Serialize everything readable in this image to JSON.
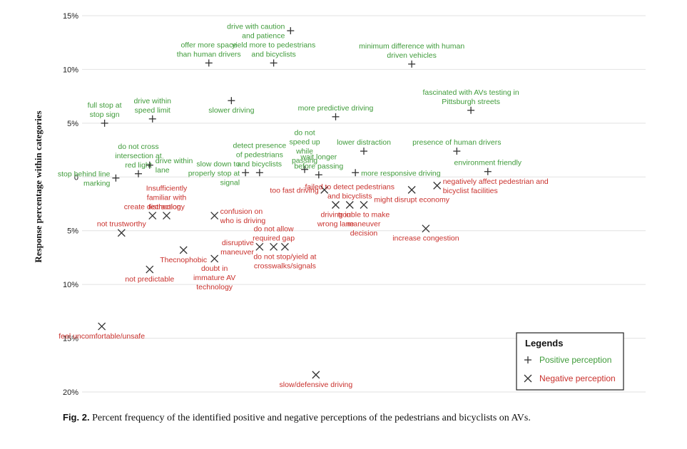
{
  "chart_data": {
    "type": "scatter",
    "ylabel": "Response percentage within categories",
    "yticks": [
      {
        "value": 15,
        "label": "15%"
      },
      {
        "value": 10,
        "label": "10%"
      },
      {
        "value": 5,
        "label": "5%"
      },
      {
        "value": 0,
        "label": "0"
      },
      {
        "value": -5,
        "label": "5%"
      },
      {
        "value": -10,
        "label": "10%"
      },
      {
        "value": -15,
        "label": "15%"
      },
      {
        "value": -20,
        "label": "20%"
      }
    ],
    "ylim": [
      -20,
      15
    ],
    "xlim": [
      0,
      100
    ],
    "series": [
      {
        "name": "Positive perception",
        "marker": "+",
        "color": "#3f9b3a",
        "points": [
          {
            "x": 4,
            "y": 5,
            "lines": [
              "full stop at",
              "stop sign"
            ],
            "pos": "above"
          },
          {
            "x": 6,
            "y": -0.1,
            "lines": [
              "stop behind line",
              "marking"
            ],
            "pos": "left"
          },
          {
            "x": 10,
            "y": 0.3,
            "lines": [
              "do not cross",
              "intersection at",
              "red light"
            ],
            "pos": "above"
          },
          {
            "x": 12.5,
            "y": 5.4,
            "lines": [
              "drive within",
              "speed limit"
            ],
            "pos": "above"
          },
          {
            "x": 12,
            "y": 1.1,
            "lines": [
              "drive within",
              "lane"
            ],
            "pos": "right"
          },
          {
            "x": 22.5,
            "y": 10.6,
            "lines": [
              "offer more space",
              "than human drivers"
            ],
            "pos": "above"
          },
          {
            "x": 26.5,
            "y": 7.1,
            "lines": [
              "slower driving"
            ],
            "pos": "below"
          },
          {
            "x": 29,
            "y": 0.4,
            "lines": [
              "slow down to",
              "properly stop at",
              "signal"
            ],
            "pos": "left"
          },
          {
            "x": 31.5,
            "y": 0.4,
            "lines": [
              "detect presence",
              "of pedestrians",
              "and bicyclists"
            ],
            "pos": "above"
          },
          {
            "x": 37,
            "y": 13.6,
            "lines": [
              "drive with caution",
              "and patience"
            ],
            "pos": "left"
          },
          {
            "x": 34,
            "y": 10.6,
            "lines": [
              "yield more to pedestrians",
              "and bicyclists"
            ],
            "pos": "above"
          },
          {
            "x": 39.5,
            "y": 0.7,
            "lines": [
              "do not",
              "speed up",
              "while",
              "passing"
            ],
            "pos": "above"
          },
          {
            "x": 45,
            "y": 5.6,
            "lines": [
              "more predictive driving"
            ],
            "pos": "above"
          },
          {
            "x": 42,
            "y": 0.2,
            "lines": [
              "wait longer",
              "before passing"
            ],
            "pos": "above"
          },
          {
            "x": 50,
            "y": 2.4,
            "lines": [
              "lower distraction"
            ],
            "pos": "above"
          },
          {
            "x": 48.5,
            "y": 0.4,
            "lines": [
              "more responsive driving"
            ],
            "pos": "right"
          },
          {
            "x": 58.5,
            "y": 10.5,
            "lines": [
              "minimum difference with human",
              "driven vehicles"
            ],
            "pos": "above"
          },
          {
            "x": 66.5,
            "y": 2.4,
            "lines": [
              "presence of human drivers"
            ],
            "pos": "above"
          },
          {
            "x": 69,
            "y": 6.2,
            "lines": [
              "fascinated with AVs testing in",
              "Pittsburgh streets"
            ],
            "pos": "above"
          },
          {
            "x": 72,
            "y": 0.5,
            "lines": [
              "environment friendly"
            ],
            "pos": "above"
          }
        ]
      },
      {
        "name": "Negative perception",
        "marker": "x",
        "color": "#c9302c",
        "points": [
          {
            "x": 3.5,
            "y": -13.9,
            "lines": [
              "feel uncomfortable/unsafe"
            ],
            "pos": "below"
          },
          {
            "x": 7,
            "y": -5.2,
            "lines": [
              "not trustworthy"
            ],
            "pos": "above"
          },
          {
            "x": 12,
            "y": -8.6,
            "lines": [
              "not predictable"
            ],
            "pos": "below"
          },
          {
            "x": 12.5,
            "y": -3.6,
            "lines": [
              "create distraction"
            ],
            "pos": "above"
          },
          {
            "x": 15,
            "y": -3.6,
            "lines": [
              "Insufficiently",
              "familiar with",
              "technology"
            ],
            "pos": "above"
          },
          {
            "x": 18,
            "y": -6.8,
            "lines": [
              "Thecnophobic"
            ],
            "pos": "below"
          },
          {
            "x": 23.5,
            "y": -3.6,
            "lines": [
              "confusion on",
              "who is driving"
            ],
            "pos": "right"
          },
          {
            "x": 23.5,
            "y": -7.6,
            "lines": [
              "doubt in",
              "immature AV",
              "technology"
            ],
            "pos": "below"
          },
          {
            "x": 31.5,
            "y": -6.5,
            "lines": [
              "disruptive",
              "maneuver"
            ],
            "pos": "left"
          },
          {
            "x": 34,
            "y": -6.5,
            "lines": [
              "do not allow",
              "required gap"
            ],
            "pos": "above"
          },
          {
            "x": 36,
            "y": -6.5,
            "lines": [
              "do not stop/yield at",
              "crosswalks/signals"
            ],
            "pos": "below"
          },
          {
            "x": 43,
            "y": -1.2,
            "lines": [
              "too fast driving"
            ],
            "pos": "left"
          },
          {
            "x": 45,
            "y": -2.6,
            "lines": [
              "driving in",
              "wrong lane"
            ],
            "pos": "below"
          },
          {
            "x": 47.5,
            "y": -2.6,
            "lines": [
              "failed to detect pedestrians",
              "and bicyclists"
            ],
            "pos": "above"
          },
          {
            "x": 50,
            "y": -2.6,
            "lines": [
              "trouble to make",
              "maneuver",
              "decision"
            ],
            "pos": "below"
          },
          {
            "x": 58.5,
            "y": -1.2,
            "lines": [
              "might disrupt economy"
            ],
            "pos": "below"
          },
          {
            "x": 61,
            "y": -4.8,
            "lines": [
              "increase congestion"
            ],
            "pos": "below"
          },
          {
            "x": 63,
            "y": -0.8,
            "lines": [
              "negatively affect pedestrian and",
              "bicyclist facilities"
            ],
            "pos": "right"
          },
          {
            "x": 41.5,
            "y": -18.4,
            "lines": [
              "slow/defensive driving"
            ],
            "pos": "below"
          }
        ]
      }
    ],
    "legend": {
      "title": "Legends",
      "placement": "bottom-right",
      "items": [
        {
          "marker": "+",
          "label": "Positive perception"
        },
        {
          "marker": "x",
          "label": "Negative perception"
        }
      ]
    }
  },
  "caption": {
    "label": "Fig. 2.",
    "text": "Percent frequency of the identified positive and negative perceptions of the pedestrians and bicyclists on AVs."
  }
}
